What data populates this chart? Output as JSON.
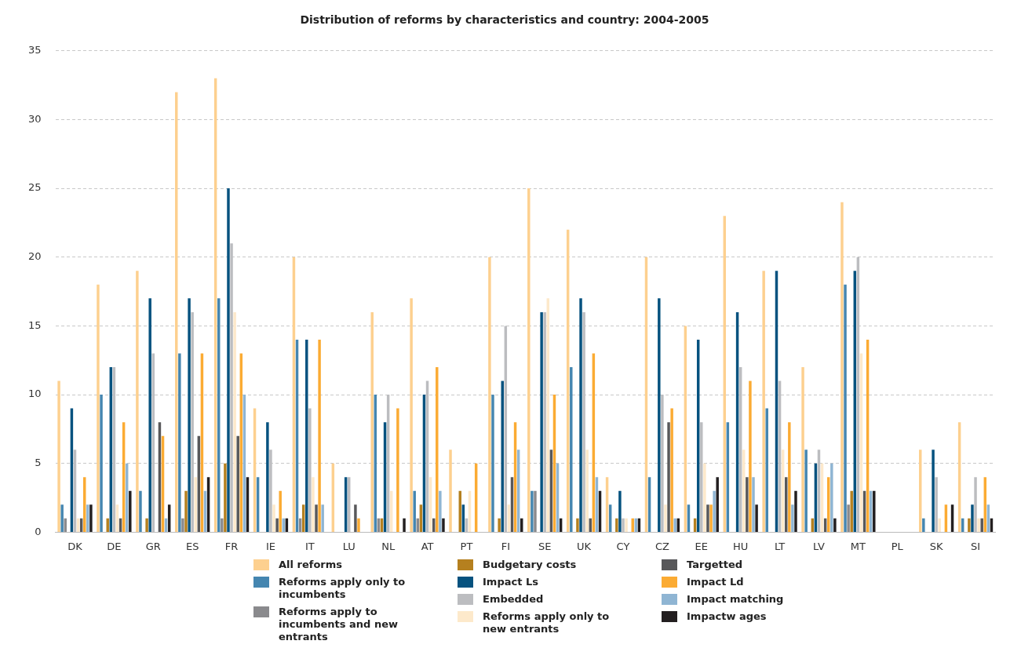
{
  "chart_data": {
    "type": "bar",
    "title": "Distribution of reforms by characteristics and country: 2004-2005",
    "categories": [
      "DK",
      "DE",
      "GR",
      "ES",
      "FR",
      "IE",
      "IT",
      "LU",
      "NL",
      "AT",
      "PT",
      "FI",
      "SE",
      "UK",
      "CY",
      "CZ",
      "EE",
      "HU",
      "LT",
      "LV",
      "MT",
      "PL",
      "SK",
      "SI"
    ],
    "series": [
      {
        "name": "All reforms",
        "color": "#fdd08f",
        "values": [
          11,
          18,
          19,
          32,
          33,
          9,
          20,
          5,
          16,
          17,
          6,
          20,
          25,
          22,
          4,
          20,
          15,
          23,
          19,
          12,
          24,
          0,
          6,
          8
        ]
      },
      {
        "name": "Reforms apply only to incumbents",
        "color": "#4586b0",
        "values": [
          2,
          10,
          3,
          13,
          17,
          4,
          14,
          0,
          10,
          3,
          0,
          10,
          3,
          12,
          2,
          4,
          2,
          8,
          9,
          6,
          18,
          0,
          1,
          1
        ]
      },
      {
        "name": "Reforms apply to incumbents and new entrants",
        "color": "#8a8a8d",
        "values": [
          1,
          0,
          0,
          1,
          1,
          0,
          1,
          0,
          1,
          1,
          0,
          0,
          3,
          0,
          0,
          0,
          0,
          0,
          0,
          0,
          2,
          0,
          0,
          0
        ]
      },
      {
        "name": "Budgetary costs",
        "color": "#b5801f",
        "values": [
          0,
          1,
          1,
          3,
          5,
          0,
          2,
          0,
          1,
          2,
          3,
          1,
          0,
          1,
          1,
          0,
          1,
          0,
          0,
          1,
          3,
          0,
          0,
          1
        ]
      },
      {
        "name": "Impact Ls",
        "color": "#06527f",
        "values": [
          9,
          12,
          17,
          17,
          25,
          8,
          14,
          4,
          8,
          10,
          2,
          11,
          16,
          17,
          3,
          17,
          14,
          16,
          19,
          5,
          19,
          0,
          6,
          2
        ]
      },
      {
        "name": "Embedded",
        "color": "#bcbdc0",
        "values": [
          6,
          12,
          13,
          16,
          21,
          6,
          9,
          4,
          10,
          11,
          1,
          15,
          16,
          16,
          1,
          10,
          8,
          12,
          11,
          6,
          20,
          0,
          4,
          4
        ]
      },
      {
        "name": "Reforms apply only to new entrants",
        "color": "#fde9cb",
        "values": [
          1,
          2,
          0,
          4,
          16,
          2,
          4,
          0,
          3,
          4,
          3,
          2,
          17,
          6,
          1,
          2,
          5,
          6,
          6,
          5,
          13,
          0,
          1,
          1
        ]
      },
      {
        "name": "Targetted",
        "color": "#58585a",
        "values": [
          1,
          1,
          8,
          7,
          7,
          1,
          2,
          2,
          0,
          1,
          0,
          4,
          6,
          1,
          0,
          8,
          2,
          4,
          4,
          1,
          3,
          0,
          0,
          1
        ]
      },
      {
        "name": "Impact Ld",
        "color": "#fbab33",
        "values": [
          4,
          8,
          7,
          13,
          13,
          3,
          14,
          1,
          9,
          12,
          5,
          8,
          10,
          13,
          1,
          9,
          2,
          11,
          8,
          4,
          14,
          0,
          2,
          4
        ]
      },
      {
        "name": "Impact matching",
        "color": "#8fb5d3",
        "values": [
          2,
          5,
          1,
          3,
          10,
          1,
          2,
          0,
          0,
          3,
          0,
          6,
          5,
          4,
          1,
          1,
          3,
          4,
          2,
          5,
          3,
          0,
          0,
          2
        ]
      },
      {
        "name": "Impactw ages",
        "color": "#231f20",
        "values": [
          2,
          3,
          2,
          4,
          4,
          1,
          0,
          0,
          1,
          1,
          0,
          1,
          1,
          3,
          1,
          1,
          4,
          2,
          3,
          1,
          3,
          0,
          2,
          1
        ]
      }
    ],
    "ylim": [
      0,
      35
    ],
    "yticks": [
      0,
      5,
      10,
      15,
      20,
      25,
      30,
      35
    ],
    "grid": "y",
    "legend": "bottom"
  }
}
